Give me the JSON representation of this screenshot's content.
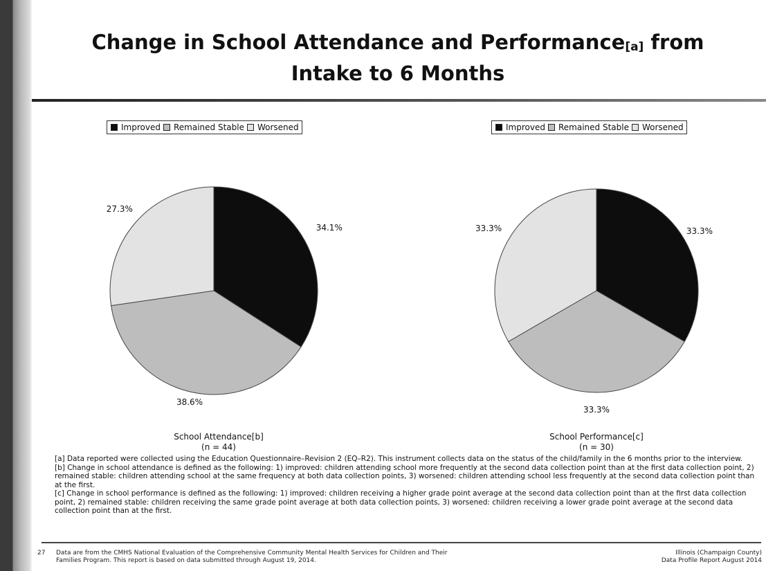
{
  "title": {
    "line1": "Change in School Attendance and Performance",
    "sup": "[a]",
    "line1_end": " from",
    "line2": "Intake to 6 Months"
  },
  "legend": {
    "items": [
      {
        "label": "Improved",
        "color": "#0d0d0d"
      },
      {
        "label": "Remained Stable",
        "color": "#bdbdbd"
      },
      {
        "label": "Worsened",
        "color": "#e3e3e3"
      }
    ]
  },
  "chart_data": [
    {
      "type": "pie",
      "title": "School Attendance[b]",
      "n_label": "(n = 44)",
      "categories": [
        "Improved",
        "Remained Stable",
        "Worsened"
      ],
      "values": [
        34.1,
        38.6,
        27.3
      ],
      "labels": [
        "34.1%",
        "38.6%",
        "27.3%"
      ],
      "colors": [
        "#0d0d0d",
        "#bdbdbd",
        "#e3e3e3"
      ]
    },
    {
      "type": "pie",
      "title": "School Performance[c]",
      "n_label": "(n = 30)",
      "categories": [
        "Improved",
        "Remained Stable",
        "Worsened"
      ],
      "values": [
        33.3,
        33.3,
        33.3
      ],
      "labels": [
        "33.3%",
        "33.3%",
        "33.3%"
      ],
      "colors": [
        "#0d0d0d",
        "#bdbdbd",
        "#e3e3e3"
      ]
    }
  ],
  "notes": {
    "a": "[a] Data reported were collected using the Education Questionnaire–Revision 2 (EQ–R2). This instrument collects data on the status of the child/family in the 6 months prior to the interview.",
    "b": "[b] Change in school attendance is defined as the following: 1) improved: children attending school more frequently at the second data collection point than at the first data collection point, 2) remained stable: children attending school at the same frequency at both data collection points, 3) worsened: children attending school less frequently at the second data collection point than at the first.",
    "c": "[c] Change in school performance is defined as the following: 1) improved: children receiving a higher grade point average at the second data collection point than at the first data collection point, 2) remained stable: children receiving the same grade point average at both data collection points, 3) worsened: children receiving a lower grade point average at the second data collection point than at the first."
  },
  "footer": {
    "page_number": "27",
    "left_line1": "Data are from the CMHS National Evaluation of the Comprehensive Community Mental Health Services for Children and Their",
    "left_line2": "Families Program. This report is based on data submitted through August 19, 2014.",
    "right_line1": "Illinois (Champaign County)",
    "right_line2": "Data Profile Report August 2014"
  }
}
